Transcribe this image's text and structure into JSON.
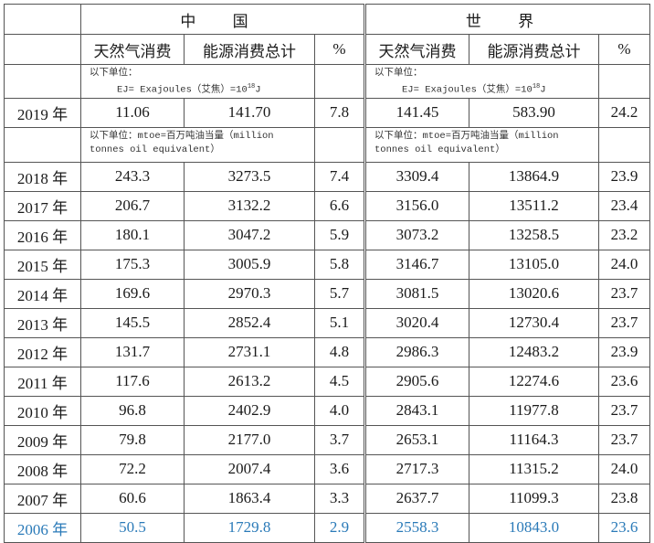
{
  "header": {
    "china": "中 国",
    "world": "世 界"
  },
  "columns": [
    "天然气消费",
    "能源消费总计",
    "%"
  ],
  "note_ej": {
    "line1": "以下单位：",
    "line2_pre": "EJ= Exajoules（艾焦）=10",
    "line2_sup": "18",
    "line2_post": "J"
  },
  "row_2019": {
    "year": "2019 年",
    "cn_gas": "11.06",
    "cn_total": "141.70",
    "cn_pct": "7.8",
    "w_gas": "141.45",
    "w_total": "583.90",
    "w_pct": "24.2"
  },
  "note_mtoe": {
    "line1": "以下单位：mtoe=百万吨油当量（million",
    "line2": "tonnes oil equivalent）"
  },
  "rows": [
    {
      "year": "2018 年",
      "cn_gas": "243.3",
      "cn_total": "3273.5",
      "cn_pct": "7.4",
      "w_gas": "3309.4",
      "w_total": "13864.9",
      "w_pct": "23.9"
    },
    {
      "year": "2017 年",
      "cn_gas": "206.7",
      "cn_total": "3132.2",
      "cn_pct": "6.6",
      "w_gas": "3156.0",
      "w_total": "13511.2",
      "w_pct": "23.4"
    },
    {
      "year": "2016 年",
      "cn_gas": "180.1",
      "cn_total": "3047.2",
      "cn_pct": "5.9",
      "w_gas": "3073.2",
      "w_total": "13258.5",
      "w_pct": "23.2"
    },
    {
      "year": "2015 年",
      "cn_gas": "175.3",
      "cn_total": "3005.9",
      "cn_pct": "5.8",
      "w_gas": "3146.7",
      "w_total": "13105.0",
      "w_pct": "24.0"
    },
    {
      "year": "2014 年",
      "cn_gas": "169.6",
      "cn_total": "2970.3",
      "cn_pct": "5.7",
      "w_gas": "3081.5",
      "w_total": "13020.6",
      "w_pct": "23.7"
    },
    {
      "year": "2013 年",
      "cn_gas": "145.5",
      "cn_total": "2852.4",
      "cn_pct": "5.1",
      "w_gas": "3020.4",
      "w_total": "12730.4",
      "w_pct": "23.7"
    },
    {
      "year": "2012 年",
      "cn_gas": "131.7",
      "cn_total": "2731.1",
      "cn_pct": "4.8",
      "w_gas": "2986.3",
      "w_total": "12483.2",
      "w_pct": "23.9"
    },
    {
      "year": "2011 年",
      "cn_gas": "117.6",
      "cn_total": "2613.2",
      "cn_pct": "4.5",
      "w_gas": "2905.6",
      "w_total": "12274.6",
      "w_pct": "23.6"
    },
    {
      "year": "2010 年",
      "cn_gas": "96.8",
      "cn_total": "2402.9",
      "cn_pct": "4.0",
      "w_gas": "2843.1",
      "w_total": "11977.8",
      "w_pct": "23.7"
    },
    {
      "year": "2009 年",
      "cn_gas": "79.8",
      "cn_total": "2177.0",
      "cn_pct": "3.7",
      "w_gas": "2653.1",
      "w_total": "11164.3",
      "w_pct": "23.7"
    },
    {
      "year": "2008 年",
      "cn_gas": "72.2",
      "cn_total": "2007.4",
      "cn_pct": "3.6",
      "w_gas": "2717.3",
      "w_total": "11315.2",
      "w_pct": "24.0"
    },
    {
      "year": "2007 年",
      "cn_gas": "60.6",
      "cn_total": "1863.4",
      "cn_pct": "3.3",
      "w_gas": "2637.7",
      "w_total": "11099.3",
      "w_pct": "23.8"
    },
    {
      "year": "2006 年",
      "cn_gas": "50.5",
      "cn_total": "1729.8",
      "cn_pct": "2.9",
      "w_gas": "2558.3",
      "w_total": "10843.0",
      "w_pct": "23.6"
    }
  ],
  "colors": {
    "text": "#1a1a1a",
    "highlight_row": "#2a7ab8",
    "border": "#555555"
  }
}
